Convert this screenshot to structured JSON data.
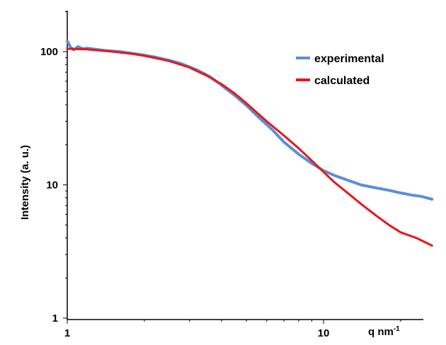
{
  "chart_data": {
    "type": "line",
    "title": "",
    "xlabel": "q nm",
    "xlabel_superscript": "-1",
    "ylabel": "Intensity (a. u.)",
    "x_scale": "log",
    "y_scale": "log",
    "xlim": [
      1,
      30
    ],
    "ylim": [
      1,
      200
    ],
    "x_ticks": [
      1,
      10
    ],
    "x_tick_labels": [
      "1",
      "10"
    ],
    "y_ticks": [
      1,
      10,
      100
    ],
    "y_tick_labels": [
      "1",
      "10",
      "100"
    ],
    "grid": false,
    "legend": {
      "position": "top-right"
    },
    "series": [
      {
        "name": "experimental",
        "color": "#5b8ed6",
        "x": [
          1.0,
          1.03,
          1.06,
          1.1,
          1.15,
          1.2,
          1.3,
          1.4,
          1.6,
          1.8,
          2.0,
          2.2,
          2.5,
          2.8,
          3.2,
          3.6,
          4.0,
          4.5,
          5.0,
          5.6,
          6.3,
          7.0,
          8.0,
          9.0,
          10.0,
          11.0,
          12.5,
          14.0,
          16.0,
          18.0,
          20.0,
          22.0,
          24.0,
          26.5
        ],
        "y": [
          120,
          108,
          103,
          109,
          105,
          106,
          104,
          102,
          100,
          97,
          94,
          91,
          86,
          81,
          73,
          65,
          56,
          47,
          39.5,
          32,
          26,
          21,
          17,
          14.5,
          12.8,
          11.8,
          10.8,
          10.0,
          9.5,
          9.1,
          8.7,
          8.4,
          8.2,
          7.8
        ]
      },
      {
        "name": "calculated",
        "color": "#e8151b",
        "x": [
          1.0,
          1.2,
          1.5,
          1.8,
          2.0,
          2.5,
          3.0,
          3.5,
          4.0,
          4.5,
          5.0,
          6.0,
          7.0,
          8.0,
          9.0,
          10.0,
          11.0,
          12.5,
          14.0,
          16.0,
          18.0,
          20.0,
          23.0,
          26.5
        ],
        "y": [
          105,
          104,
          100,
          96,
          93,
          85,
          76,
          66,
          57,
          48.5,
          41,
          30,
          23.5,
          18.8,
          15.2,
          12.5,
          10.5,
          8.6,
          7.2,
          5.9,
          5.0,
          4.4,
          4.0,
          3.5
        ]
      }
    ]
  }
}
